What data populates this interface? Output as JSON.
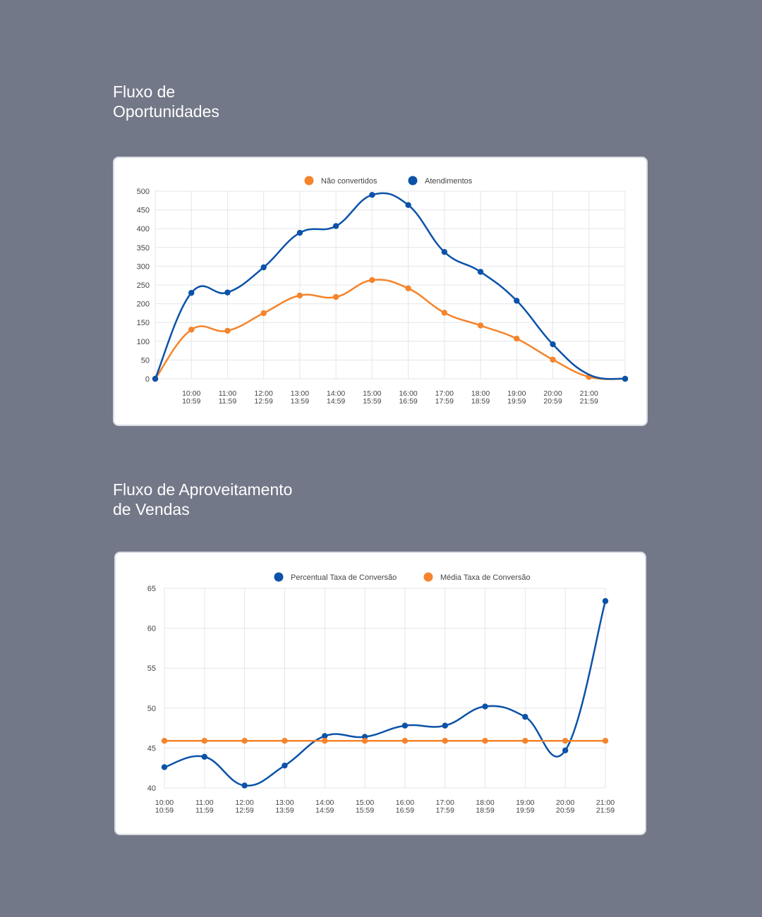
{
  "page": {
    "background": "#737888"
  },
  "charts": [
    {
      "title_lines": [
        "Fluxo de",
        "Oportunidades"
      ],
      "chart_data": {
        "type": "line",
        "title": "Fluxo de Oportunidades",
        "x": [
          "",
          "10:00\n10:59",
          "11:00\n11:59",
          "12:00\n12:59",
          "13:00\n13:59",
          "14:00\n14:59",
          "15:00\n15:59",
          "16:00\n16:59",
          "17:00\n17:59",
          "18:00\n18:59",
          "19:00\n19:59",
          "20:00\n20:59",
          "21:00\n21:59",
          ""
        ],
        "ylim": [
          0,
          500
        ],
        "yticks": [
          0,
          50,
          100,
          150,
          200,
          250,
          300,
          350,
          400,
          450,
          500
        ],
        "grid": true,
        "legend": "top-center",
        "series": [
          {
            "name": "Não convertidos",
            "color": "#f5842c",
            "values": [
              0,
              131,
              128,
              175,
              222,
              218,
              263,
              241,
              176,
              142,
              107,
              51,
              5,
              0
            ]
          },
          {
            "name": "Atendimentos",
            "color": "#0b52a8",
            "values": [
              0,
              229,
              230,
              297,
              389,
              407,
              490,
              463,
              338,
              285,
              208,
              92,
              null,
              0
            ]
          }
        ]
      }
    },
    {
      "title_lines": [
        "Fluxo de Aproveitamento",
        "de Vendas"
      ],
      "chart_data": {
        "type": "line",
        "title": "Fluxo de Aproveitamento de Vendas",
        "x": [
          "10:00\n10:59",
          "11:00\n11:59",
          "12:00\n12:59",
          "13:00\n13:59",
          "14:00\n14:59",
          "15:00\n15:59",
          "16:00\n16:59",
          "17:00\n17:59",
          "18:00\n18:59",
          "19:00\n19:59",
          "20:00\n20:59",
          "21:00\n21:59"
        ],
        "ylim": [
          40,
          65
        ],
        "yticks": [
          40,
          45,
          50,
          55,
          60,
          65
        ],
        "grid": true,
        "legend": "top-center",
        "series": [
          {
            "name": "Percentual Taxa de Conversão",
            "color": "#0b52a8",
            "values": [
              42.6,
              43.9,
              40.3,
              42.8,
              46.5,
              46.4,
              47.8,
              47.8,
              50.2,
              48.9,
              44.7,
              63.4
            ]
          },
          {
            "name": "Média Taxa de Conversão",
            "color": "#f5842c",
            "values": [
              45.9,
              45.9,
              45.9,
              45.9,
              45.9,
              45.9,
              45.9,
              45.9,
              45.9,
              45.9,
              45.9,
              45.9
            ]
          }
        ]
      }
    }
  ]
}
